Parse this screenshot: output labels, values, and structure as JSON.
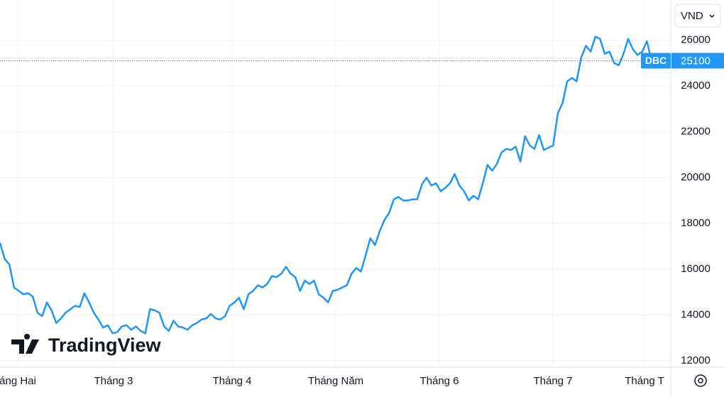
{
  "chart_data": {
    "type": "line",
    "brand": "TradingView",
    "currency": "VND",
    "symbol": "DBC",
    "last_price": 25100,
    "x_labels": [
      "áng Hai",
      "Tháng 3",
      "Tháng 4",
      "Tháng Năm",
      "Tháng 6",
      "Tháng 7",
      "Tháng T"
    ],
    "series": [
      {
        "name": "DBC",
        "color": "#2196f3",
        "values": [
          17150,
          16450,
          16200,
          15200,
          15050,
          14900,
          14950,
          14800,
          14100,
          13950,
          14550,
          14200,
          13650,
          13850,
          14100,
          14250,
          14400,
          14350,
          14950,
          14550,
          14100,
          13800,
          13450,
          13550,
          13200,
          13250,
          13500,
          13550,
          13350,
          13500,
          13300,
          13200,
          14250,
          14200,
          14100,
          13500,
          13300,
          13750,
          13500,
          13450,
          13350,
          13550,
          13650,
          13800,
          13850,
          14050,
          13850,
          13800,
          13950,
          14400,
          14550,
          14750,
          14250,
          14900,
          15050,
          15300,
          15200,
          15350,
          15700,
          15650,
          15800,
          16100,
          15800,
          15650,
          15050,
          15500,
          15350,
          15500,
          14900,
          14750,
          14550,
          15050,
          15100,
          15200,
          15300,
          15800,
          16050,
          15900,
          16600,
          17350,
          17050,
          17650,
          18150,
          18450,
          19050,
          19150,
          19000,
          19000,
          19050,
          19050,
          19700,
          20000,
          19650,
          19750,
          19400,
          19550,
          19750,
          20150,
          19650,
          19400,
          19000,
          19200,
          19050,
          19750,
          20550,
          20300,
          20600,
          21100,
          21250,
          21200,
          21350,
          20700,
          21800,
          21400,
          21250,
          21850,
          21200,
          21300,
          21400,
          22800,
          23250,
          24200,
          24350,
          24200,
          25250,
          25750,
          25500,
          26150,
          26050,
          25400,
          25500,
          25000,
          24900,
          25400,
          26050,
          25600,
          25350,
          25500,
          25950,
          25100
        ]
      }
    ],
    "ylim": [
      11720,
      27750
    ],
    "yticks": [
      12000,
      14000,
      16000,
      18000,
      20000,
      22000,
      24000,
      26000
    ],
    "grid": true
  }
}
